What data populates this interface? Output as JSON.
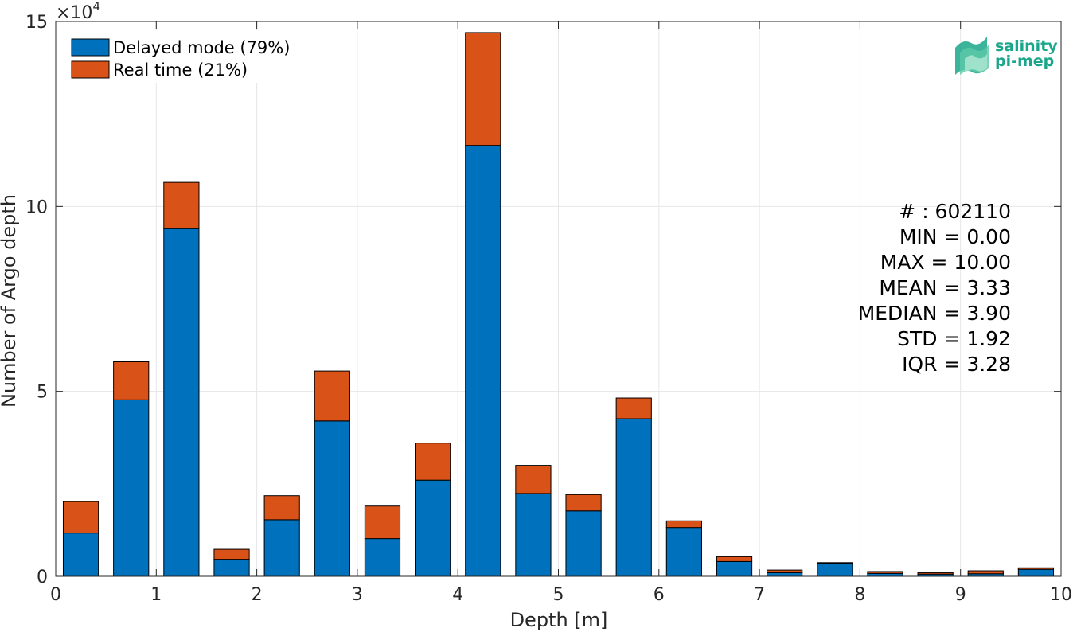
{
  "chart_data": {
    "type": "bar",
    "stacked": true,
    "xlabel": "Depth [m]",
    "ylabel": "Number of Argo depth",
    "y_multiplier_label": "×10",
    "y_multiplier_exponent": "4",
    "xlim": [
      0,
      10
    ],
    "ylim": [
      0,
      150000
    ],
    "grid": true,
    "legend_position": "top-left",
    "x_ticks": [
      0,
      1,
      2,
      3,
      4,
      5,
      6,
      7,
      8,
      9,
      10
    ],
    "x_tick_labels": [
      "0",
      "1",
      "2",
      "3",
      "4",
      "5",
      "6",
      "7",
      "8",
      "9",
      "10"
    ],
    "y_ticks": [
      0,
      50000,
      100000,
      150000
    ],
    "y_tick_labels": [
      "0",
      "5",
      "10",
      "15"
    ],
    "bin_centers": [
      0.25,
      0.75,
      1.25,
      1.75,
      2.25,
      2.75,
      3.25,
      3.75,
      4.25,
      4.75,
      5.25,
      5.75,
      6.25,
      6.75,
      7.25,
      7.75,
      8.25,
      8.75,
      9.25,
      9.75
    ],
    "bar_width": 0.35,
    "series": [
      {
        "name": "Delayed mode (79%)",
        "color": "#0072BD",
        "values": [
          11700,
          47700,
          94000,
          4600,
          15300,
          42000,
          10200,
          26000,
          116500,
          22400,
          17700,
          42600,
          13200,
          4000,
          1000,
          3500,
          800,
          600,
          700,
          1900
        ]
      },
      {
        "name": "Real time (21%)",
        "color": "#D95319",
        "values": [
          8500,
          10300,
          12500,
          2700,
          6500,
          13500,
          8800,
          10000,
          30500,
          7600,
          4400,
          5600,
          1800,
          1300,
          700,
          200,
          500,
          400,
          800,
          400
        ]
      }
    ]
  },
  "stats": {
    "count": "# : 602110",
    "min": "MIN = 0.00",
    "max": "MAX =  10.00",
    "mean": "MEAN = 3.33",
    "median": "MEDIAN = 3.90",
    "std": "STD = 1.92",
    "iqr": "IQR = 3.28"
  },
  "logo": {
    "line1": "salinity",
    "line2": "pi-mep",
    "color": "#1AA68A"
  }
}
